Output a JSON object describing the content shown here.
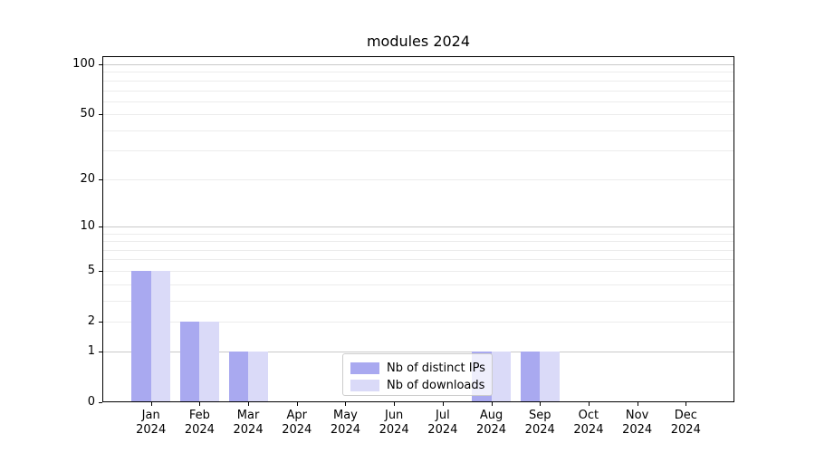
{
  "chart_data": {
    "type": "bar",
    "title": "modules 2024",
    "categories": [
      "Jan 2024",
      "Feb 2024",
      "Mar 2024",
      "Apr 2024",
      "May 2024",
      "Jun 2024",
      "Jul 2024",
      "Aug 2024",
      "Sep 2024",
      "Oct 2024",
      "Nov 2024",
      "Dec 2024"
    ],
    "series": [
      {
        "name": "Nb of distinct IPs",
        "color": "#a9a9f0",
        "values": [
          5,
          2,
          1,
          0,
          0,
          0,
          0,
          1,
          1,
          0,
          0,
          0
        ]
      },
      {
        "name": "Nb of downloads",
        "color": "#dadaf8",
        "values": [
          5,
          2,
          1,
          0,
          0,
          0,
          0,
          1,
          1,
          0,
          0,
          0
        ]
      }
    ],
    "yscale": "log1p",
    "ylim": [
      0,
      112
    ],
    "yticks": [
      0,
      1,
      2,
      5,
      10,
      20,
      50,
      100
    ],
    "grid_major": [
      1,
      10,
      100
    ],
    "grid_minor": [
      2,
      3,
      4,
      5,
      6,
      7,
      8,
      9,
      20,
      30,
      40,
      50,
      60,
      70,
      80,
      90
    ],
    "legend_position": "lower-center",
    "colors": {
      "axis": "#000000",
      "grid_major": "#c9c9c9",
      "grid_minor": "#ececec",
      "background": "#ffffff"
    }
  }
}
